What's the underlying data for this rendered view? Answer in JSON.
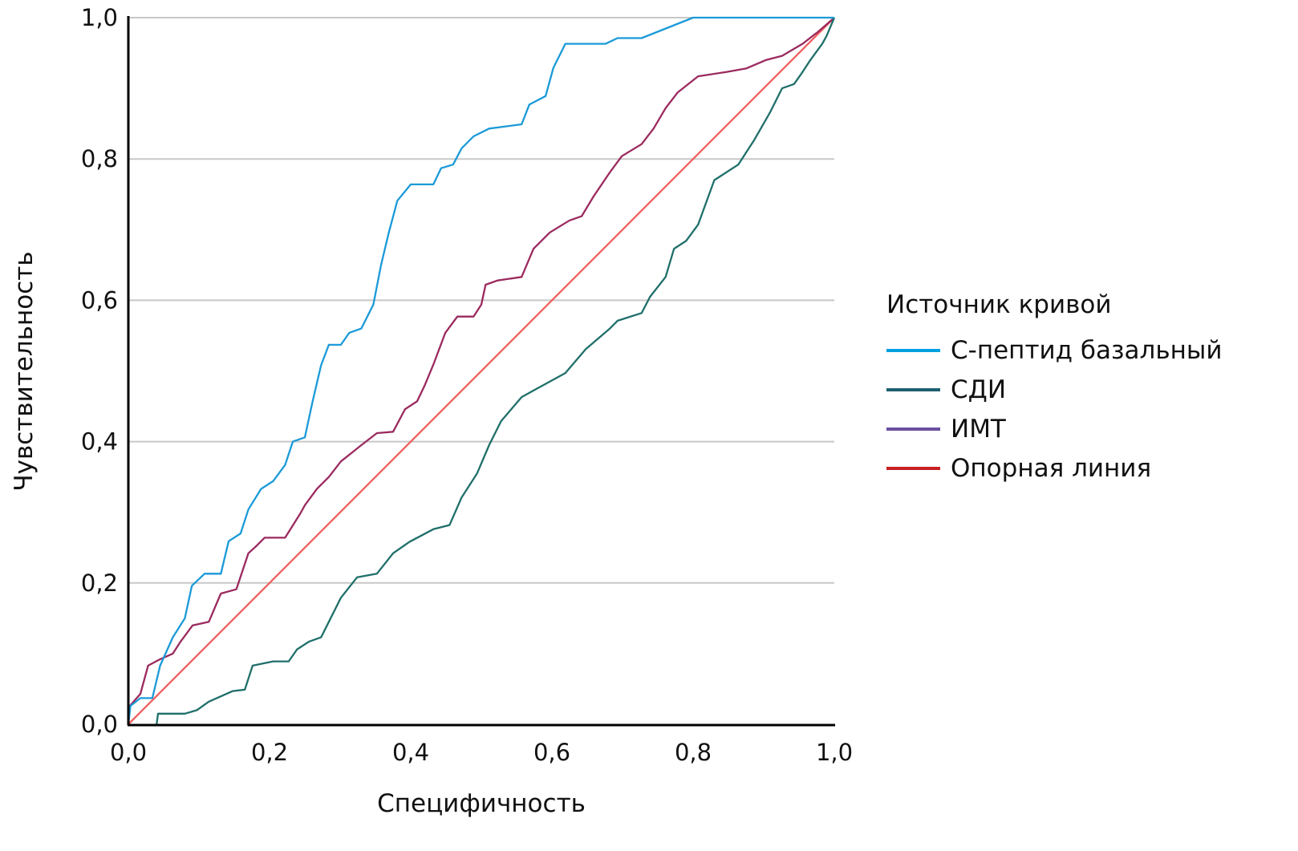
{
  "chart_data": {
    "type": "line",
    "title": "",
    "xlabel": "Специфичность",
    "ylabel": "Чувствительность",
    "xlim": [
      0,
      1
    ],
    "ylim": [
      0,
      1
    ],
    "xticks": [
      "0,0",
      "0,2",
      "0,4",
      "0,6",
      "0,8",
      "1,0"
    ],
    "yticks": [
      "0,0",
      "0,2",
      "0,4",
      "0,6",
      "0,8",
      "1,0"
    ],
    "grid": "horizontal",
    "legend": {
      "title": "Источник кривой",
      "placement": "right"
    },
    "series": [
      {
        "name": "С-пептид базальный",
        "line_color": "#1b9ad8",
        "legend_color": "#00a0e0",
        "x": [
          0,
          0.003,
          0.017,
          0.034,
          0.045,
          0.063,
          0.08,
          0.09,
          0.108,
          0.131,
          0.142,
          0.159,
          0.17,
          0.188,
          0.205,
          0.222,
          0.233,
          0.25,
          0.261,
          0.273,
          0.284,
          0.301,
          0.313,
          0.33,
          0.347,
          0.358,
          0.369,
          0.381,
          0.4,
          0.432,
          0.443,
          0.46,
          0.472,
          0.489,
          0.511,
          0.557,
          0.568,
          0.591,
          0.602,
          0.619,
          0.676,
          0.693,
          0.727,
          0.8,
          1
        ],
        "y": [
          0,
          0.026,
          0.037,
          0.037,
          0.083,
          0.123,
          0.15,
          0.196,
          0.213,
          0.213,
          0.259,
          0.27,
          0.304,
          0.333,
          0.344,
          0.367,
          0.4,
          0.406,
          0.457,
          0.508,
          0.537,
          0.537,
          0.554,
          0.56,
          0.594,
          0.65,
          0.696,
          0.741,
          0.764,
          0.764,
          0.787,
          0.792,
          0.815,
          0.832,
          0.843,
          0.849,
          0.877,
          0.889,
          0.929,
          0.963,
          0.963,
          0.971,
          0.971,
          1,
          1
        ]
      },
      {
        "name": "СДИ",
        "line_color": "#1f6f6a",
        "legend_color": "#1e6070",
        "x": [
          0.04,
          0.042,
          0.08,
          0.097,
          0.114,
          0.148,
          0.165,
          0.176,
          0.205,
          0.227,
          0.239,
          0.256,
          0.273,
          0.284,
          0.301,
          0.324,
          0.352,
          0.375,
          0.398,
          0.432,
          0.455,
          0.472,
          0.494,
          0.511,
          0.528,
          0.557,
          0.568,
          0.619,
          0.648,
          0.682,
          0.693,
          0.727,
          0.739,
          0.761,
          0.773,
          0.79,
          0.807,
          0.83,
          0.864,
          0.886,
          0.909,
          0.926,
          0.943,
          0.955,
          0.966,
          0.983,
          0.989,
          1
        ],
        "y": [
          0,
          0.015,
          0.015,
          0.02,
          0.032,
          0.047,
          0.049,
          0.083,
          0.089,
          0.089,
          0.106,
          0.117,
          0.123,
          0.145,
          0.179,
          0.208,
          0.213,
          0.242,
          0.258,
          0.276,
          0.282,
          0.321,
          0.355,
          0.395,
          0.429,
          0.463,
          0.469,
          0.497,
          0.531,
          0.56,
          0.571,
          0.582,
          0.605,
          0.633,
          0.673,
          0.684,
          0.707,
          0.77,
          0.792,
          0.826,
          0.866,
          0.9,
          0.906,
          0.923,
          0.94,
          0.963,
          0.974,
          1
        ]
      },
      {
        "name": "ИМТ",
        "line_color": "#9b2a5e",
        "legend_color": "#6a50a0",
        "x": [
          0,
          0.002,
          0.017,
          0.028,
          0.045,
          0.063,
          0.074,
          0.091,
          0.114,
          0.131,
          0.153,
          0.17,
          0.182,
          0.193,
          0.222,
          0.244,
          0.25,
          0.267,
          0.284,
          0.301,
          0.33,
          0.352,
          0.375,
          0.392,
          0.409,
          0.42,
          0.432,
          0.449,
          0.466,
          0.489,
          0.5,
          0.506,
          0.523,
          0.557,
          0.574,
          0.597,
          0.625,
          0.642,
          0.659,
          0.682,
          0.699,
          0.727,
          0.744,
          0.761,
          0.778,
          0.807,
          0.847,
          0.875,
          0.903,
          0.926,
          0.955,
          0.977,
          1
        ],
        "y": [
          0,
          0.026,
          0.043,
          0.083,
          0.092,
          0.1,
          0.117,
          0.14,
          0.145,
          0.185,
          0.191,
          0.242,
          0.253,
          0.264,
          0.264,
          0.299,
          0.31,
          0.333,
          0.35,
          0.372,
          0.395,
          0.412,
          0.414,
          0.446,
          0.457,
          0.48,
          0.509,
          0.554,
          0.577,
          0.577,
          0.594,
          0.622,
          0.628,
          0.633,
          0.673,
          0.696,
          0.713,
          0.719,
          0.747,
          0.781,
          0.804,
          0.821,
          0.843,
          0.872,
          0.894,
          0.917,
          0.923,
          0.928,
          0.94,
          0.946,
          0.963,
          0.98,
          1
        ]
      },
      {
        "name": "Опорная линия",
        "line_color": "#f0605e",
        "legend_color": "#c82222",
        "x": [
          0,
          1
        ],
        "y": [
          0,
          1
        ]
      }
    ]
  }
}
